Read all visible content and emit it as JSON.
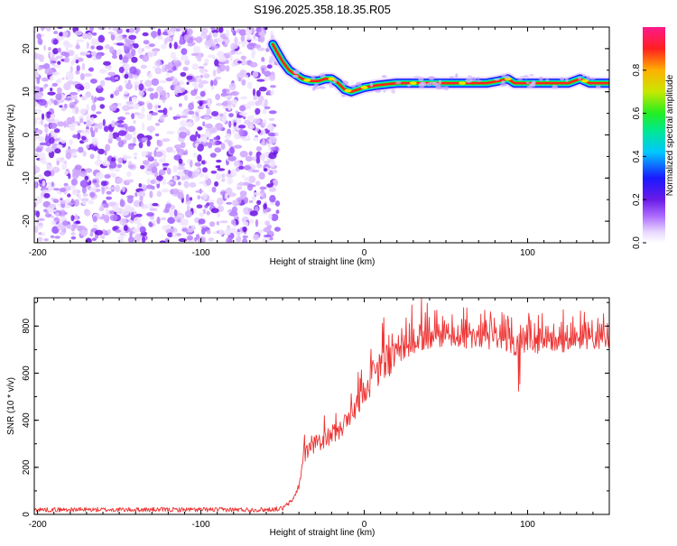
{
  "title": "S196.2025.358.18.35.R05",
  "chart_data": [
    {
      "type": "heatmap",
      "name": "spectrogram",
      "xlabel": "Height of straight line (km)",
      "ylabel": "Frequency (Hz)",
      "xlim": [
        -202,
        150
      ],
      "ylim": [
        -25,
        25
      ],
      "xticks": [
        -200,
        -100,
        0,
        100
      ],
      "yticks": [
        -20,
        -10,
        0,
        10,
        20
      ],
      "noise_region_x": [
        -202,
        -53
      ],
      "trace": [
        {
          "x": -56,
          "y": 21
        },
        {
          "x": -53,
          "y": 19
        },
        {
          "x": -50,
          "y": 17
        },
        {
          "x": -46,
          "y": 15
        },
        {
          "x": -42,
          "y": 14
        },
        {
          "x": -38,
          "y": 13
        },
        {
          "x": -33,
          "y": 12.5
        },
        {
          "x": -28,
          "y": 12.5
        },
        {
          "x": -24,
          "y": 13
        },
        {
          "x": -20,
          "y": 13
        },
        {
          "x": -16,
          "y": 12
        },
        {
          "x": -12,
          "y": 10.5
        },
        {
          "x": -8,
          "y": 10
        },
        {
          "x": -4,
          "y": 10.5
        },
        {
          "x": 0,
          "y": 11
        },
        {
          "x": 8,
          "y": 11.5
        },
        {
          "x": 20,
          "y": 12
        },
        {
          "x": 50,
          "y": 12
        },
        {
          "x": 75,
          "y": 12
        },
        {
          "x": 82,
          "y": 12.5
        },
        {
          "x": 88,
          "y": 13
        },
        {
          "x": 92,
          "y": 12
        },
        {
          "x": 100,
          "y": 12
        },
        {
          "x": 125,
          "y": 12
        },
        {
          "x": 132,
          "y": 13
        },
        {
          "x": 138,
          "y": 12
        },
        {
          "x": 150,
          "y": 12
        }
      ],
      "colorbar": {
        "label": "Normalized spectral amplitude",
        "ticks": [
          "0.0",
          "0.2",
          "0.4",
          "0.6",
          "0.8"
        ],
        "range": [
          0,
          1
        ]
      }
    },
    {
      "type": "line",
      "name": "snr",
      "xlabel": "Height of straight line (km)",
      "ylabel": "SNR (10 * v/v)",
      "xlim": [
        -202,
        150
      ],
      "ylim": [
        0,
        920
      ],
      "xticks": [
        -200,
        -100,
        0,
        100
      ],
      "yticks": [
        0,
        200,
        400,
        600,
        800
      ],
      "series_color": "#ee3333",
      "envelope": [
        {
          "x": -202,
          "y": 20
        },
        {
          "x": -60,
          "y": 20
        },
        {
          "x": -50,
          "y": 25
        },
        {
          "x": -44,
          "y": 60
        },
        {
          "x": -40,
          "y": 120
        },
        {
          "x": -37,
          "y": 250
        },
        {
          "x": -33,
          "y": 280
        },
        {
          "x": -30,
          "y": 300
        },
        {
          "x": -25,
          "y": 310
        },
        {
          "x": -20,
          "y": 340
        },
        {
          "x": -15,
          "y": 360
        },
        {
          "x": -10,
          "y": 400
        },
        {
          "x": -5,
          "y": 450
        },
        {
          "x": 0,
          "y": 530
        },
        {
          "x": 5,
          "y": 580
        },
        {
          "x": 10,
          "y": 620
        },
        {
          "x": 15,
          "y": 650
        },
        {
          "x": 20,
          "y": 680
        },
        {
          "x": 30,
          "y": 720
        },
        {
          "x": 40,
          "y": 740
        },
        {
          "x": 60,
          "y": 745
        },
        {
          "x": 80,
          "y": 740
        },
        {
          "x": 90,
          "y": 720
        },
        {
          "x": 95,
          "y": 700
        },
        {
          "x": 100,
          "y": 720
        },
        {
          "x": 120,
          "y": 725
        },
        {
          "x": 150,
          "y": 730
        }
      ]
    }
  ]
}
